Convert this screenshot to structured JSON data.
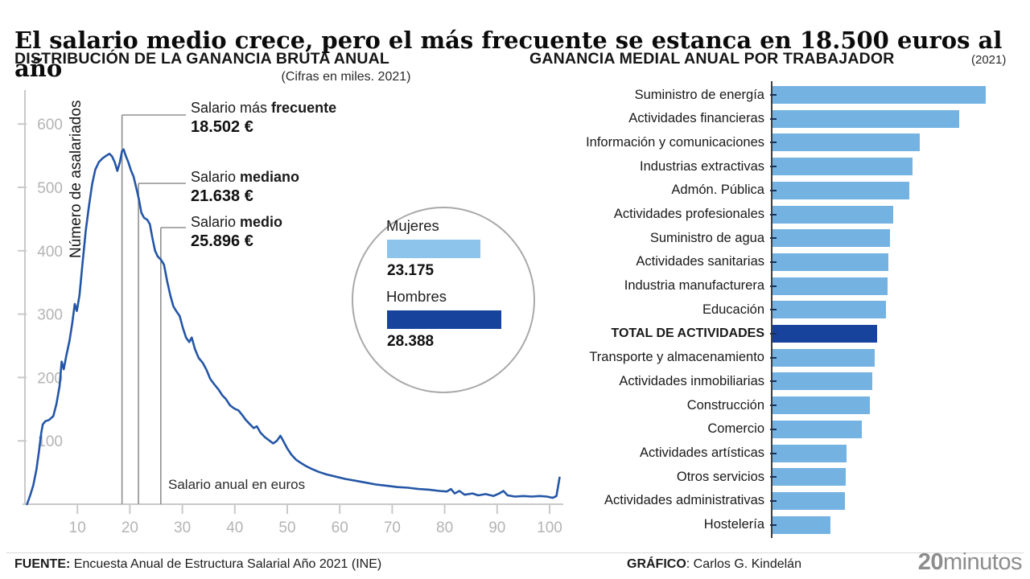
{
  "headline": "El salario medio crece, pero el más frecuente se estanca en 18.500 euros al año",
  "chart_data": [
    {
      "type": "line",
      "title": "DISTRIBUCIÓN DE LA GANANCIA BRUTA ANUAL",
      "units_note": "(Cifras en miles. 2021)",
      "xlabel": "Salario anual en euros",
      "ylabel": "Número de asalariados",
      "xlim": [
        0,
        103
      ],
      "ylim": [
        0,
        620
      ],
      "x_ticks": [
        10,
        20,
        30,
        40,
        50,
        60,
        70,
        80,
        90,
        100
      ],
      "y_ticks": [
        100,
        200,
        300,
        400,
        500,
        600
      ],
      "grid": false,
      "line_color": "#2456a6",
      "annotations": [
        {
          "label_prefix": "Salario más ",
          "label_bold": "frecuente",
          "display_value": "18.502 €",
          "value_eur": 18502
        },
        {
          "label_prefix": "Salario ",
          "label_bold": "mediano",
          "display_value": "21.638 €",
          "value_eur": 21638
        },
        {
          "label_prefix": "Salario ",
          "label_bold": "medio",
          "display_value": "25.896 €",
          "value_eur": 25896
        }
      ],
      "gender_legend": [
        {
          "label": "Mujeres",
          "display_value": "23.175",
          "value_eur": 23175,
          "color": "#8cc4ec"
        },
        {
          "label": "Hombres",
          "display_value": "28.388",
          "value_eur": 28388,
          "color": "#17439d"
        }
      ],
      "points": [
        [
          0.4,
          0
        ],
        [
          1.0,
          14
        ],
        [
          1.6,
          30
        ],
        [
          2.2,
          55
        ],
        [
          2.7,
          85
        ],
        [
          3.1,
          112
        ],
        [
          3.4,
          126
        ],
        [
          3.9,
          131
        ],
        [
          4.6,
          133
        ],
        [
          5.4,
          139
        ],
        [
          6.0,
          158
        ],
        [
          6.6,
          186
        ],
        [
          7.0,
          225
        ],
        [
          7.4,
          213
        ],
        [
          7.9,
          235
        ],
        [
          8.5,
          258
        ],
        [
          9.0,
          285
        ],
        [
          9.5,
          316
        ],
        [
          9.9,
          305
        ],
        [
          10.4,
          330
        ],
        [
          11.0,
          382
        ],
        [
          11.6,
          432
        ],
        [
          12.2,
          470
        ],
        [
          12.8,
          505
        ],
        [
          13.4,
          528
        ],
        [
          14.1,
          540
        ],
        [
          14.8,
          546
        ],
        [
          15.5,
          550
        ],
        [
          16.1,
          553
        ],
        [
          16.6,
          549
        ],
        [
          17.1,
          540
        ],
        [
          17.6,
          526
        ],
        [
          18.1,
          540
        ],
        [
          18.5,
          557
        ],
        [
          18.8,
          560
        ],
        [
          19.2,
          550
        ],
        [
          19.7,
          540
        ],
        [
          20.2,
          527
        ],
        [
          20.7,
          517
        ],
        [
          21.2,
          500
        ],
        [
          21.7,
          482
        ],
        [
          22.2,
          460
        ],
        [
          22.7,
          452
        ],
        [
          23.3,
          449
        ],
        [
          23.8,
          442
        ],
        [
          24.3,
          420
        ],
        [
          24.8,
          400
        ],
        [
          25.3,
          391
        ],
        [
          25.9,
          386
        ],
        [
          26.5,
          378
        ],
        [
          27.1,
          352
        ],
        [
          27.7,
          330
        ],
        [
          28.3,
          312
        ],
        [
          28.9,
          304
        ],
        [
          29.5,
          297
        ],
        [
          30.1,
          278
        ],
        [
          30.7,
          263
        ],
        [
          31.3,
          256
        ],
        [
          31.8,
          263
        ],
        [
          32.4,
          245
        ],
        [
          33.1,
          231
        ],
        [
          33.9,
          223
        ],
        [
          34.6,
          212
        ],
        [
          35.3,
          198
        ],
        [
          36.1,
          189
        ],
        [
          36.9,
          181
        ],
        [
          37.6,
          172
        ],
        [
          38.3,
          166
        ],
        [
          39.1,
          156
        ],
        [
          39.9,
          151
        ],
        [
          40.7,
          148
        ],
        [
          41.4,
          141
        ],
        [
          42.1,
          133
        ],
        [
          42.9,
          126
        ],
        [
          43.6,
          120
        ],
        [
          44.2,
          123
        ],
        [
          44.9,
          113
        ],
        [
          45.7,
          106
        ],
        [
          46.5,
          101
        ],
        [
          47.3,
          96
        ],
        [
          48.0,
          100
        ],
        [
          48.7,
          108
        ],
        [
          49.3,
          99
        ],
        [
          50.0,
          88
        ],
        [
          50.8,
          78
        ],
        [
          51.7,
          70
        ],
        [
          52.6,
          65
        ],
        [
          53.6,
          60
        ],
        [
          54.6,
          56
        ],
        [
          56.0,
          51
        ],
        [
          57.5,
          47
        ],
        [
          59.0,
          44
        ],
        [
          61.0,
          40
        ],
        [
          63.0,
          37
        ],
        [
          65.0,
          34
        ],
        [
          67.0,
          31
        ],
        [
          69.0,
          29
        ],
        [
          71.0,
          27
        ],
        [
          73.0,
          26
        ],
        [
          75.0,
          24
        ],
        [
          77.0,
          23
        ],
        [
          79.0,
          21
        ],
        [
          80.4,
          20
        ],
        [
          81.2,
          24
        ],
        [
          81.9,
          17
        ],
        [
          82.8,
          21
        ],
        [
          83.8,
          15
        ],
        [
          85.3,
          17
        ],
        [
          86.4,
          14
        ],
        [
          87.8,
          16
        ],
        [
          89.3,
          13
        ],
        [
          90.4,
          17
        ],
        [
          91.2,
          21
        ],
        [
          92.0,
          14
        ],
        [
          93.4,
          12
        ],
        [
          95.0,
          13
        ],
        [
          96.6,
          12
        ],
        [
          98.1,
          13
        ],
        [
          99.5,
          12
        ],
        [
          100.6,
          10
        ],
        [
          101.3,
          13
        ],
        [
          101.9,
          42
        ]
      ]
    },
    {
      "type": "bar",
      "orientation": "horizontal",
      "title": "GANANCIA MEDIAL ANUAL POR TRABAJADOR",
      "year_label": "(2021)",
      "categories": [
        "Suministro de energía",
        "Actividades financieras",
        "Información y comunicaciones",
        "Industrias extractivas",
        "Admón. Pública",
        "Actividades profesionales",
        "Suministro de agua",
        "Actividades sanitarias",
        "Industria manufacturera",
        "Educación",
        "TOTAL DE ACTIVIDADES",
        "Transporte y almacenamiento",
        "Actividades inmobiliarias",
        "Construcción",
        "Comercio",
        "Actividades artísticas",
        "Otros servicios",
        "Actividades administrativas",
        "Hostelería"
      ],
      "values": [
        52800,
        46200,
        36400,
        34600,
        33800,
        29900,
        29100,
        28700,
        28500,
        28100,
        25896,
        25300,
        24700,
        24100,
        22100,
        18330,
        18130,
        17930,
        14350
      ],
      "values_are_estimated_eur": true,
      "highlight_index": 10,
      "bar_color": "#74b2e2",
      "highlight_color": "#17439d",
      "value_labels_shown": false
    }
  ],
  "footer": {
    "source_bold": "FUENTE:",
    "source_text": " Encuesta Anual de Estructura Salarial Año 2021 (INE)",
    "credit_bold": "GRÁFICO",
    "credit_text": ": Carlos G. Kindelán",
    "brand_bold": "20",
    "brand_light": "minutos"
  },
  "colors": {
    "line_blue": "#2456a6",
    "bar_light_blue": "#74b2e2",
    "bar_dark_blue": "#17439d",
    "legend_light_blue": "#8cc4ec",
    "axis_gray": "#c9c9c9",
    "axis_label_gray": "#b4b4b4",
    "marker_gray": "#8f8f8f"
  }
}
